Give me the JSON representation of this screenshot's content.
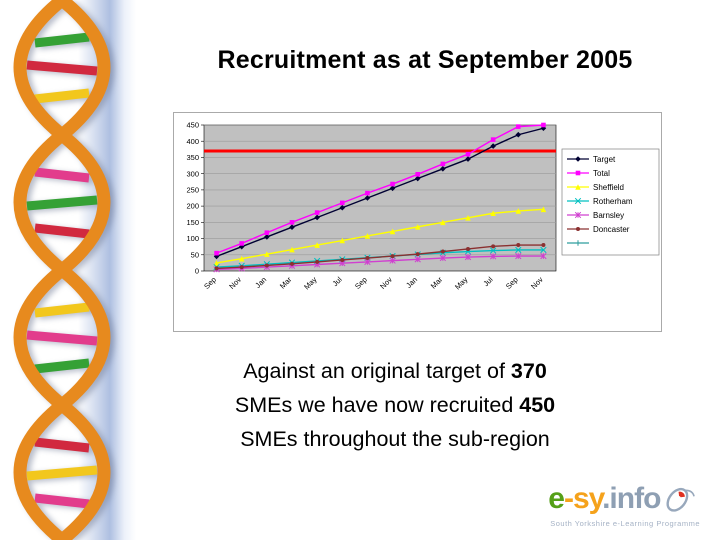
{
  "slide": {
    "title": "Recruitment as at September 2005",
    "body": {
      "line1_text": "Against an original target of ",
      "line1_bold": "370",
      "line2_text": "SMEs we have now recruited ",
      "line2_bold": "450",
      "line3_text": "SMEs throughout the sub-region"
    }
  },
  "logo": {
    "part_e": "e",
    "part_dash": "-",
    "part_sy": "sy",
    "part_info": ".info",
    "tagline": "South Yorkshire e-Learning Programme",
    "colors": {
      "e": "#55A018",
      "dash": "#F5A21B",
      "sy": "#F5A21B",
      "info": "#8E9FB3",
      "tagline": "#A5B2C5",
      "mouse_accent": "#E03020"
    }
  },
  "chart_data": {
    "type": "line",
    "title": "",
    "xlabel": "",
    "ylabel": "",
    "ylim": [
      0,
      450
    ],
    "ytick_step": 50,
    "grid": true,
    "plot_bg": "#C0C0C0",
    "legend_position": "right",
    "categories": [
      "Sep",
      "Nov",
      "Jan",
      "Mar",
      "May",
      "Jul",
      "Sep",
      "Nov",
      "Jan",
      "Mar",
      "May",
      "Jul",
      "Sep",
      "Nov"
    ],
    "series": [
      {
        "name": "Target",
        "color": "#000033",
        "marker": "diamond",
        "values": [
          45,
          75,
          105,
          135,
          165,
          195,
          225,
          255,
          285,
          315,
          345,
          385,
          420,
          440
        ]
      },
      {
        "name": "Total",
        "color": "#FF00FF",
        "marker": "square",
        "values": [
          55,
          85,
          118,
          150,
          180,
          210,
          240,
          268,
          298,
          330,
          360,
          405,
          445,
          450
        ]
      },
      {
        "name": "Sheffield",
        "color": "#FFFF00",
        "marker": "triangle",
        "values": [
          25,
          38,
          52,
          66,
          80,
          94,
          108,
          122,
          136,
          150,
          164,
          178,
          185,
          190
        ]
      },
      {
        "name": "Rotherham",
        "color": "#00C0C0",
        "marker": "x",
        "values": [
          12,
          16,
          21,
          26,
          31,
          36,
          41,
          46,
          51,
          56,
          60,
          63,
          65,
          65
        ]
      },
      {
        "name": "Barnsley",
        "color": "#D040D0",
        "marker": "star",
        "values": [
          5,
          8,
          12,
          16,
          20,
          24,
          28,
          32,
          36,
          40,
          43,
          45,
          46,
          46
        ]
      },
      {
        "name": "Doncaster",
        "color": "#8B3030",
        "marker": "circle",
        "values": [
          8,
          12,
          17,
          22,
          28,
          34,
          40,
          46,
          52,
          60,
          68,
          76,
          80,
          80
        ]
      },
      {
        "name": "",
        "color": "#2E9E9E",
        "marker": "plus",
        "values": []
      }
    ],
    "reference_line": {
      "value": 370,
      "color": "#FF0000"
    }
  }
}
